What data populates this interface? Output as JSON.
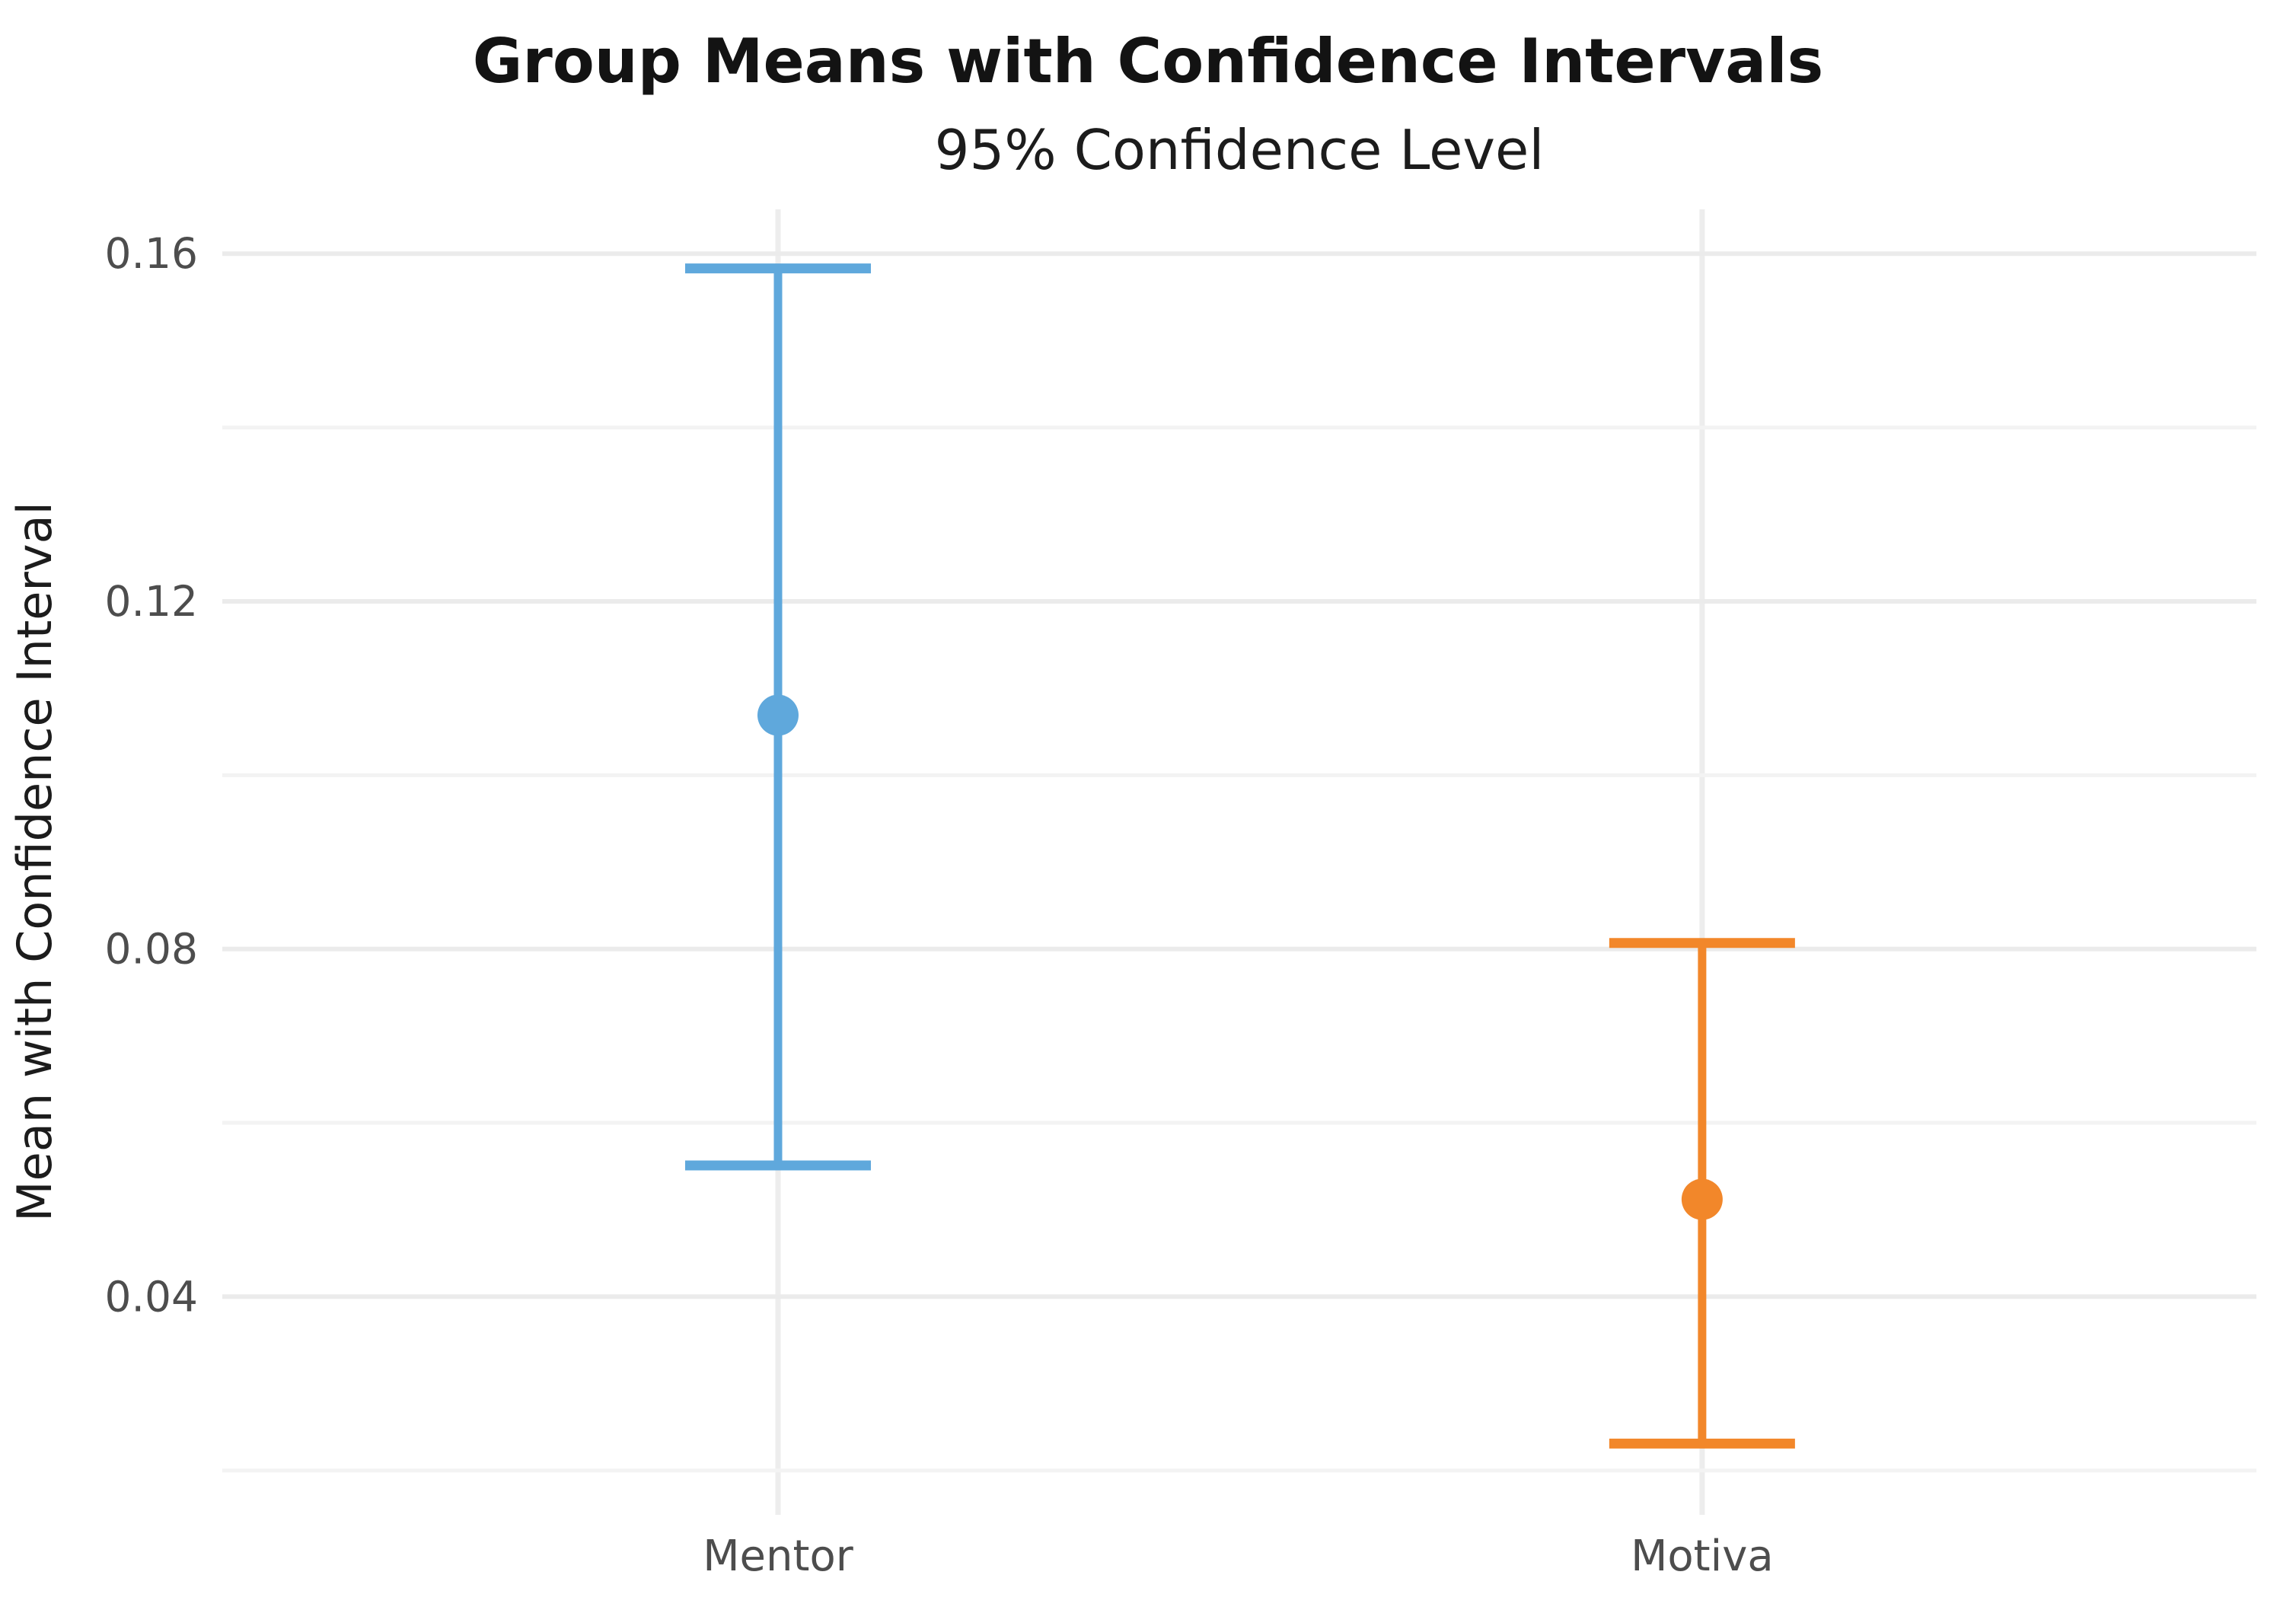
{
  "chart_data": {
    "type": "scatter",
    "error_bars": "confidence-interval",
    "title": "Group Means with Confidence Intervals",
    "subtitle": "95% Confidence Level",
    "confidence_level": "95%",
    "xlabel": "",
    "ylabel": "Mean with Confidence Interval",
    "categories": [
      "Mentor",
      "Motiva"
    ],
    "series": [
      {
        "name": "Mentor",
        "mean": 0.1069,
        "ci_low": 0.0551,
        "ci_high": 0.1583,
        "color": "#5FA8DC"
      },
      {
        "name": "Motiva",
        "mean": 0.0512,
        "ci_low": 0.0231,
        "ci_high": 0.0807,
        "color": "#F2872A"
      }
    ],
    "yticks": [
      {
        "value": 0.04,
        "label": "0.04"
      },
      {
        "value": 0.08,
        "label": "0.08"
      },
      {
        "value": 0.12,
        "label": "0.12"
      },
      {
        "value": 0.16,
        "label": "0.16"
      }
    ],
    "minor_gridlines": [
      0.02,
      0.06,
      0.1,
      0.14
    ],
    "ylim": [
      0.0149,
      0.1651
    ],
    "grid": true,
    "legend_position": "none"
  },
  "colors": {
    "background": "#ffffff",
    "grid_major": "#ebebeb",
    "grid_minor": "#f3f3f3",
    "grid_vertical": "#ededed",
    "tick_text": "#4d4d4d",
    "title_text": "#131313"
  }
}
